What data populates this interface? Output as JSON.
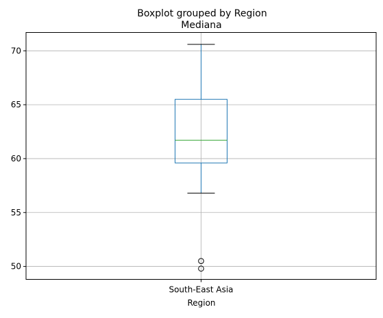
{
  "chart_data": {
    "type": "box",
    "suptitle": "Boxplot grouped by Region",
    "title": "Mediana",
    "xlabel": "Region",
    "ylabel": "",
    "categories": [
      "South-East Asia"
    ],
    "ylim": [
      48.8,
      71.7
    ],
    "yticks": [
      50,
      55,
      60,
      65,
      70
    ],
    "grid": true,
    "boxes": [
      {
        "category": "South-East Asia",
        "whisker_low": 56.8,
        "q1": 59.6,
        "median": 61.7,
        "q3": 65.5,
        "whisker_high": 70.6,
        "outliers": [
          50.5,
          49.8
        ]
      }
    ],
    "colors": {
      "box": "#1f77b4",
      "median": "#2ca02c",
      "caps": "#000000",
      "grid": "#b0b0b0",
      "axes": "#000000"
    }
  }
}
